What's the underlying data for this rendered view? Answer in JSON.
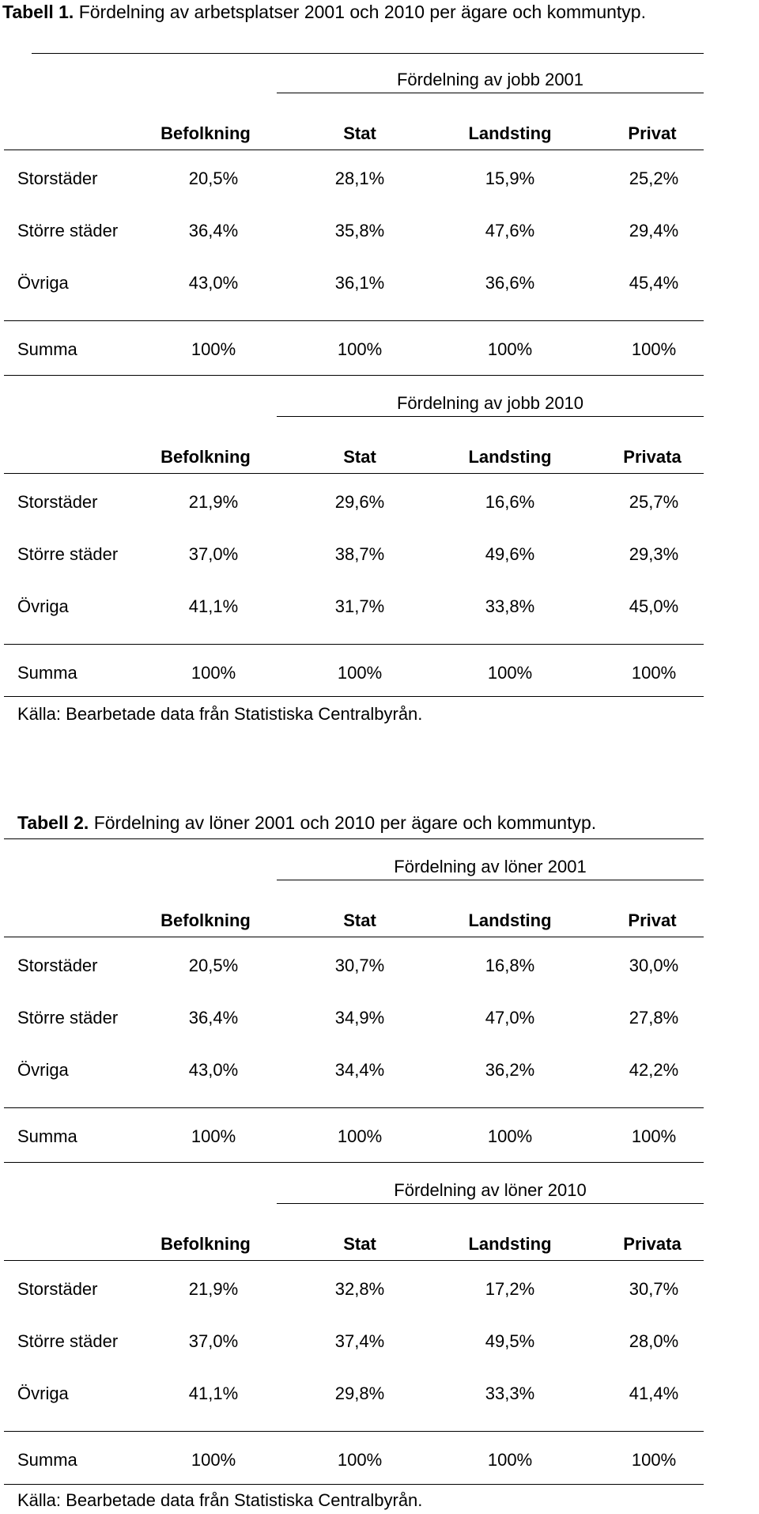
{
  "table1": {
    "caption_bold": "Tabell 1.",
    "caption_rest": " Fördelning av arbetsplatser 2001 och 2010 per ägare och kommuntyp.",
    "block2001": {
      "title": "Fördelning av jobb 2001",
      "headers": [
        "Befolkning",
        "Stat",
        "Landsting",
        "Privat"
      ],
      "rows": [
        {
          "label": "Storstäder",
          "values": [
            "20,5%",
            "28,1%",
            "15,9%",
            "25,2%"
          ]
        },
        {
          "label": "Större städer",
          "values": [
            "36,4%",
            "35,8%",
            "47,6%",
            "29,4%"
          ]
        },
        {
          "label": "Övriga",
          "values": [
            "43,0%",
            "36,1%",
            "36,6%",
            "45,4%"
          ]
        },
        {
          "label": "Summa",
          "values": [
            "100%",
            "100%",
            "100%",
            "100%"
          ]
        }
      ]
    },
    "block2010": {
      "title": "Fördelning av jobb 2010",
      "headers": [
        "Befolkning",
        "Stat",
        "Landsting",
        "Privata"
      ],
      "rows": [
        {
          "label": "Storstäder",
          "values": [
            "21,9%",
            "29,6%",
            "16,6%",
            "25,7%"
          ]
        },
        {
          "label": "Större städer",
          "values": [
            "37,0%",
            "38,7%",
            "49,6%",
            "29,3%"
          ]
        },
        {
          "label": "Övriga",
          "values": [
            "41,1%",
            "31,7%",
            "33,8%",
            "45,0%"
          ]
        },
        {
          "label": "Summa",
          "values": [
            "100%",
            "100%",
            "100%",
            "100%"
          ]
        }
      ]
    },
    "source": "Källa: Bearbetade data från Statistiska Centralbyrån."
  },
  "table2": {
    "caption_bold": "Tabell 2.",
    "caption_rest": " Fördelning av löner 2001 och 2010 per ägare och kommuntyp.",
    "block2001": {
      "title": "Fördelning av löner 2001",
      "headers": [
        "Befolkning",
        "Stat",
        "Landsting",
        "Privat"
      ],
      "rows": [
        {
          "label": "Storstäder",
          "values": [
            "20,5%",
            "30,7%",
            "16,8%",
            "30,0%"
          ]
        },
        {
          "label": "Större städer",
          "values": [
            "36,4%",
            "34,9%",
            "47,0%",
            "27,8%"
          ]
        },
        {
          "label": "Övriga",
          "values": [
            "43,0%",
            "34,4%",
            "36,2%",
            "42,2%"
          ]
        },
        {
          "label": "Summa",
          "values": [
            "100%",
            "100%",
            "100%",
            "100%"
          ]
        }
      ]
    },
    "block2010": {
      "title": "Fördelning av löner 2010",
      "headers": [
        "Befolkning",
        "Stat",
        "Landsting",
        "Privata"
      ],
      "rows": [
        {
          "label": "Storstäder",
          "values": [
            "21,9%",
            "32,8%",
            "17,2%",
            "30,7%"
          ]
        },
        {
          "label": "Större städer",
          "values": [
            "37,0%",
            "37,4%",
            "49,5%",
            "28,0%"
          ]
        },
        {
          "label": "Övriga",
          "values": [
            "41,1%",
            "29,8%",
            "33,3%",
            "41,4%"
          ]
        },
        {
          "label": "Summa",
          "values": [
            "100%",
            "100%",
            "100%",
            "100%"
          ]
        }
      ]
    },
    "source": "Källa: Bearbetade data från Statistiska Centralbyrån."
  }
}
